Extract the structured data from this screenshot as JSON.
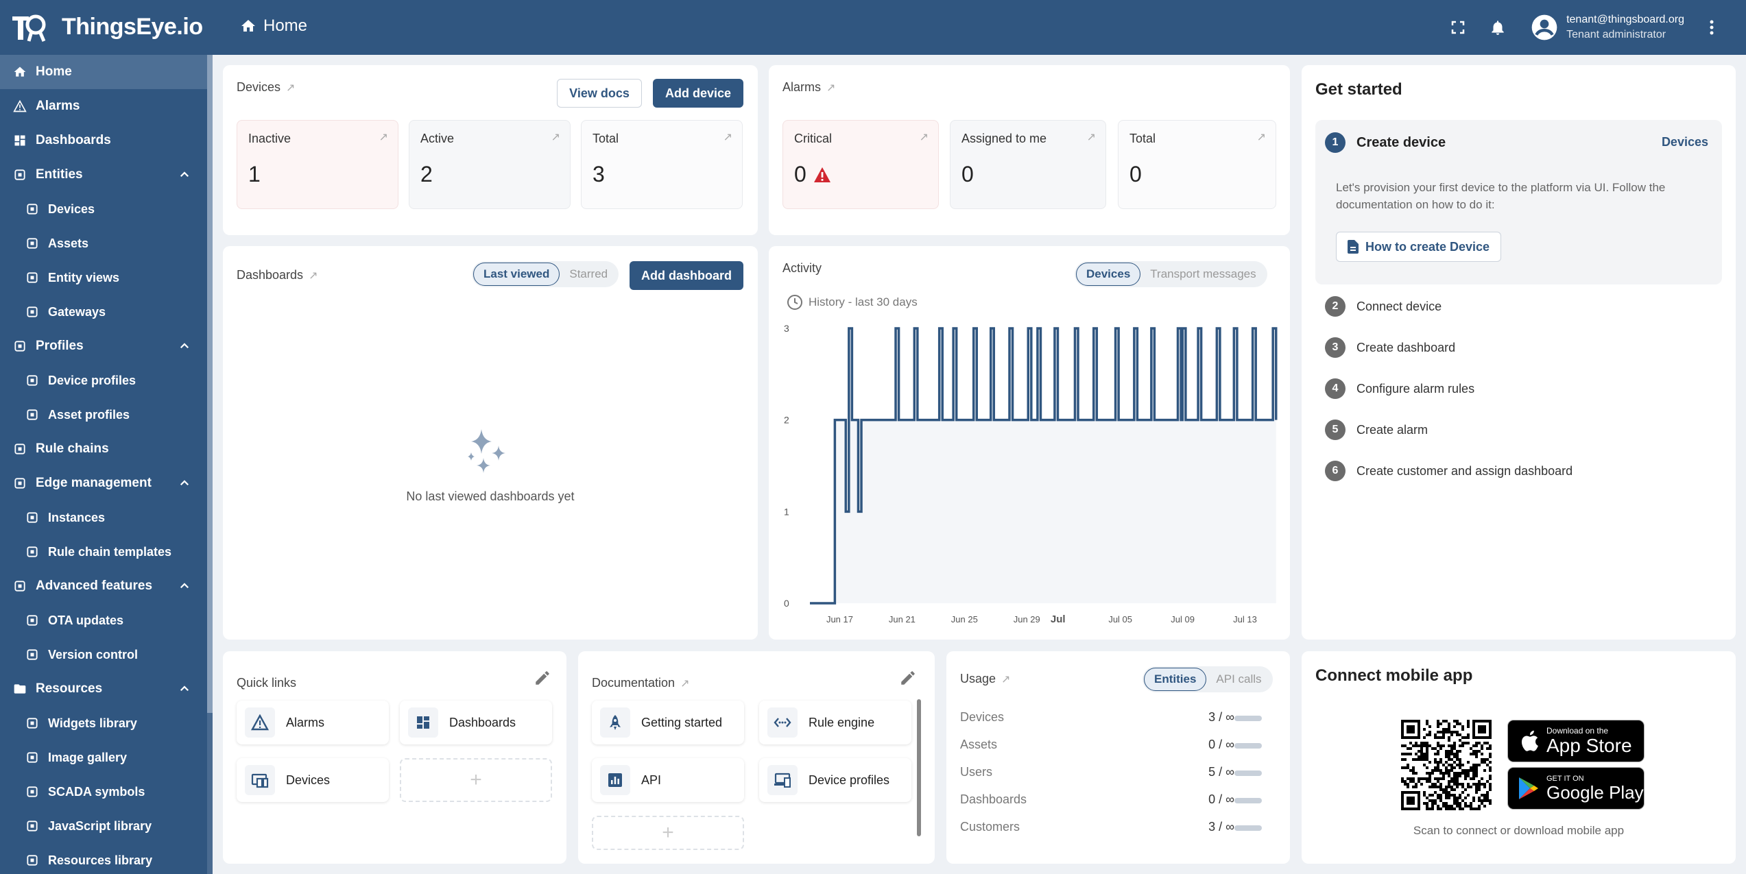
{
  "app": {
    "logo_text": "ThingsEye.io",
    "breadcrumb": "Home"
  },
  "user": {
    "email": "tenant@thingsboard.org",
    "role": "Tenant administrator"
  },
  "sidebar": {
    "items": [
      {
        "label": "Home",
        "icon": "home-icon"
      },
      {
        "label": "Alarms",
        "icon": "warning-icon"
      },
      {
        "label": "Dashboards",
        "icon": "dashboard-icon"
      },
      {
        "label": "Entities",
        "icon": "entities-icon"
      },
      {
        "label": "Devices",
        "icon": "devices-icon"
      },
      {
        "label": "Assets",
        "icon": "assets-icon"
      },
      {
        "label": "Entity views",
        "icon": "entity-views-icon"
      },
      {
        "label": "Gateways",
        "icon": "gateway-icon"
      },
      {
        "label": "Profiles",
        "icon": "profiles-icon"
      },
      {
        "label": "Device profiles",
        "icon": "device-profile-icon"
      },
      {
        "label": "Asset profiles",
        "icon": "asset-profile-icon"
      },
      {
        "label": "Rule chains",
        "icon": "rule-chain-icon"
      },
      {
        "label": "Edge management",
        "icon": "edge-icon"
      },
      {
        "label": "Instances",
        "icon": "instances-icon"
      },
      {
        "label": "Rule chain templates",
        "icon": "rule-template-icon"
      },
      {
        "label": "Advanced features",
        "icon": "tools-icon"
      },
      {
        "label": "OTA updates",
        "icon": "ota-icon"
      },
      {
        "label": "Version control",
        "icon": "history-icon"
      },
      {
        "label": "Resources",
        "icon": "folder-icon"
      },
      {
        "label": "Widgets library",
        "icon": "widgets-icon"
      },
      {
        "label": "Image gallery",
        "icon": "image-icon"
      },
      {
        "label": "SCADA symbols",
        "icon": "scada-icon"
      },
      {
        "label": "JavaScript library",
        "icon": "js-icon"
      },
      {
        "label": "Resources library",
        "icon": "resources-icon"
      }
    ]
  },
  "devices_card": {
    "title": "Devices",
    "view_docs": "View docs",
    "add_device": "Add device",
    "stats": [
      {
        "label": "Inactive",
        "value": "1"
      },
      {
        "label": "Active",
        "value": "2"
      },
      {
        "label": "Total",
        "value": "3"
      }
    ]
  },
  "alarms_card": {
    "title": "Alarms",
    "stats": [
      {
        "label": "Critical",
        "value": "0"
      },
      {
        "label": "Assigned to me",
        "value": "0"
      },
      {
        "label": "Total",
        "value": "0"
      }
    ]
  },
  "dashboards_card": {
    "title": "Dashboards",
    "toggle_last": "Last viewed",
    "toggle_starred": "Starred",
    "add_dashboard": "Add dashboard",
    "empty": "No last viewed dashboards yet"
  },
  "activity_card": {
    "title": "Activity",
    "toggle_devices": "Devices",
    "toggle_transport": "Transport messages",
    "history": "History - last 30 days"
  },
  "chart_data": {
    "type": "line",
    "title": "",
    "series": [
      {
        "name": "Devices",
        "color": "#305680"
      }
    ],
    "y_ticks": [
      "0",
      "1",
      "2",
      "3"
    ],
    "x_ticks": [
      "Jun 17",
      "Jun 21",
      "Jun 25",
      "Jun 29",
      "Jul",
      "Jul 05",
      "Jul 09",
      "Jul 13"
    ],
    "ylim": [
      0,
      3
    ],
    "x_range": [
      "Jun 15",
      "Jul 15"
    ],
    "points": [
      [
        "Jun 15",
        0
      ],
      [
        "Jun 16.6",
        0
      ],
      [
        "Jun 16.6",
        2
      ],
      [
        "Jun 17.3",
        2
      ],
      [
        "Jun 17.3",
        1
      ],
      [
        "Jun 17.5",
        1
      ],
      [
        "Jun 17.5",
        3
      ],
      [
        "Jun 17.7",
        3
      ],
      [
        "Jun 17.7",
        2
      ],
      [
        "Jun 18.1",
        2
      ],
      [
        "Jun 18.1",
        1
      ],
      [
        "Jun 18.3",
        1
      ],
      [
        "Jun 18.3",
        2
      ],
      [
        "Jun 20.5",
        2
      ],
      [
        "Jun 20.5",
        3
      ],
      [
        "Jun 20.7",
        3
      ],
      [
        "Jun 20.7",
        2
      ],
      [
        "Jun 21.7",
        2
      ],
      [
        "Jun 21.7",
        3
      ],
      [
        "Jun 21.9",
        3
      ],
      [
        "Jun 21.9",
        2
      ],
      [
        "Jun 23.3",
        2
      ],
      [
        "Jun 23.3",
        3
      ],
      [
        "Jun 23.5",
        3
      ],
      [
        "Jun 23.5",
        2
      ],
      [
        "Jun 24.2",
        2
      ],
      [
        "Jun 24.2",
        3
      ],
      [
        "Jun 24.4",
        3
      ],
      [
        "Jun 24.4",
        2
      ],
      [
        "Jun 25.5",
        2
      ],
      [
        "Jun 25.5",
        3
      ],
      [
        "Jun 25.7",
        3
      ],
      [
        "Jun 25.7",
        2
      ],
      [
        "Jun 26.6",
        2
      ],
      [
        "Jun 26.6",
        3
      ],
      [
        "Jun 26.8",
        3
      ],
      [
        "Jun 26.8",
        2
      ],
      [
        "Jun 27.8",
        2
      ],
      [
        "Jun 27.8",
        3
      ],
      [
        "Jun 28.0",
        3
      ],
      [
        "Jun 28.0",
        2
      ],
      [
        "Jun 29.0",
        2
      ],
      [
        "Jun 29.0",
        3
      ],
      [
        "Jun 29.2",
        3
      ],
      [
        "Jun 29.2",
        2
      ],
      [
        "Jun 29.6",
        2
      ],
      [
        "Jun 29.6",
        3
      ],
      [
        "Jun 29.8",
        3
      ],
      [
        "Jun 29.8",
        2
      ],
      [
        "Jun 30.7",
        2
      ],
      [
        "Jun 30.7",
        3
      ],
      [
        "Jun 30.9",
        3
      ],
      [
        "Jun 30.9",
        2
      ],
      [
        "Jul 02.0",
        2
      ],
      [
        "Jul 02.0",
        3
      ],
      [
        "Jul 02.2",
        3
      ],
      [
        "Jul 02.2",
        2
      ],
      [
        "Jul 03.2",
        2
      ],
      [
        "Jul 03.2",
        3
      ],
      [
        "Jul 03.4",
        3
      ],
      [
        "Jul 03.4",
        2
      ],
      [
        "Jul 04.6",
        2
      ],
      [
        "Jul 04.6",
        3
      ],
      [
        "Jul 04.8",
        3
      ],
      [
        "Jul 04.8",
        2
      ],
      [
        "Jul 05.8",
        2
      ],
      [
        "Jul 05.8",
        3
      ],
      [
        "Jul 06.0",
        3
      ],
      [
        "Jul 06.0",
        2
      ],
      [
        "Jul 06.9",
        2
      ],
      [
        "Jul 06.9",
        3
      ],
      [
        "Jul 07.1",
        3
      ],
      [
        "Jul 07.1",
        2
      ],
      [
        "Jul 08.6",
        2
      ],
      [
        "Jul 08.6",
        3
      ],
      [
        "Jul 08.8",
        3
      ],
      [
        "Jul 08.8",
        2
      ],
      [
        "Jul 08.9",
        2
      ],
      [
        "Jul 08.9",
        3
      ],
      [
        "Jul 09.1",
        3
      ],
      [
        "Jul 09.1",
        2
      ],
      [
        "Jul 09.9",
        2
      ],
      [
        "Jul 09.9",
        3
      ],
      [
        "Jul 10.1",
        3
      ],
      [
        "Jul 10.1",
        2
      ],
      [
        "Jul 11.1",
        2
      ],
      [
        "Jul 11.1",
        3
      ],
      [
        "Jul 11.3",
        3
      ],
      [
        "Jul 11.3",
        2
      ],
      [
        "Jul 12.2",
        2
      ],
      [
        "Jul 12.2",
        3
      ],
      [
        "Jul 12.4",
        3
      ],
      [
        "Jul 12.4",
        2
      ],
      [
        "Jul 13.4",
        2
      ],
      [
        "Jul 13.4",
        3
      ],
      [
        "Jul 13.6",
        3
      ],
      [
        "Jul 13.6",
        2
      ],
      [
        "Jul 14.7",
        2
      ],
      [
        "Jul 14.7",
        3
      ],
      [
        "Jul 14.9",
        3
      ],
      [
        "Jul 14.9",
        2
      ]
    ]
  },
  "get_started": {
    "title": "Get started",
    "steps": [
      {
        "num": "1",
        "label": "Create device"
      },
      {
        "num": "2",
        "label": "Connect device"
      },
      {
        "num": "3",
        "label": "Create dashboard"
      },
      {
        "num": "4",
        "label": "Configure alarm rules"
      },
      {
        "num": "5",
        "label": "Create alarm"
      },
      {
        "num": "6",
        "label": "Create customer and assign dashboard"
      }
    ],
    "link": "Devices",
    "description": "Let's provision your first device to the platform via UI. Follow the documentation on how to do it:",
    "how_to": "How to create Device"
  },
  "quick_links": {
    "title": "Quick links",
    "items": [
      {
        "label": "Alarms",
        "icon": "warning-icon"
      },
      {
        "label": "Dashboards",
        "icon": "dashboard-icon"
      },
      {
        "label": "Devices",
        "icon": "devices-icon"
      }
    ],
    "add": "+"
  },
  "documentation": {
    "title": "Documentation",
    "items": [
      {
        "label": "Getting started",
        "icon": "rocket-icon"
      },
      {
        "label": "Rule engine",
        "icon": "rule-chain-icon"
      },
      {
        "label": "API",
        "icon": "api-icon"
      },
      {
        "label": "Device profiles",
        "icon": "device-profile-icon"
      }
    ],
    "add": "+"
  },
  "usage": {
    "title": "Usage",
    "toggle_entities": "Entities",
    "toggle_api": "API calls",
    "rows": [
      {
        "label": "Devices",
        "value": "3 / ∞"
      },
      {
        "label": "Assets",
        "value": "0 / ∞"
      },
      {
        "label": "Users",
        "value": "5 / ∞"
      },
      {
        "label": "Dashboards",
        "value": "0 / ∞"
      },
      {
        "label": "Customers",
        "value": "3 / ∞"
      }
    ]
  },
  "mobile": {
    "title": "Connect mobile app",
    "appstore_small": "Download on the",
    "appstore_big": "App Store",
    "gplay_small": "GET IT ON",
    "gplay_big": "Google Play",
    "caption": "Scan to connect or download mobile app"
  }
}
